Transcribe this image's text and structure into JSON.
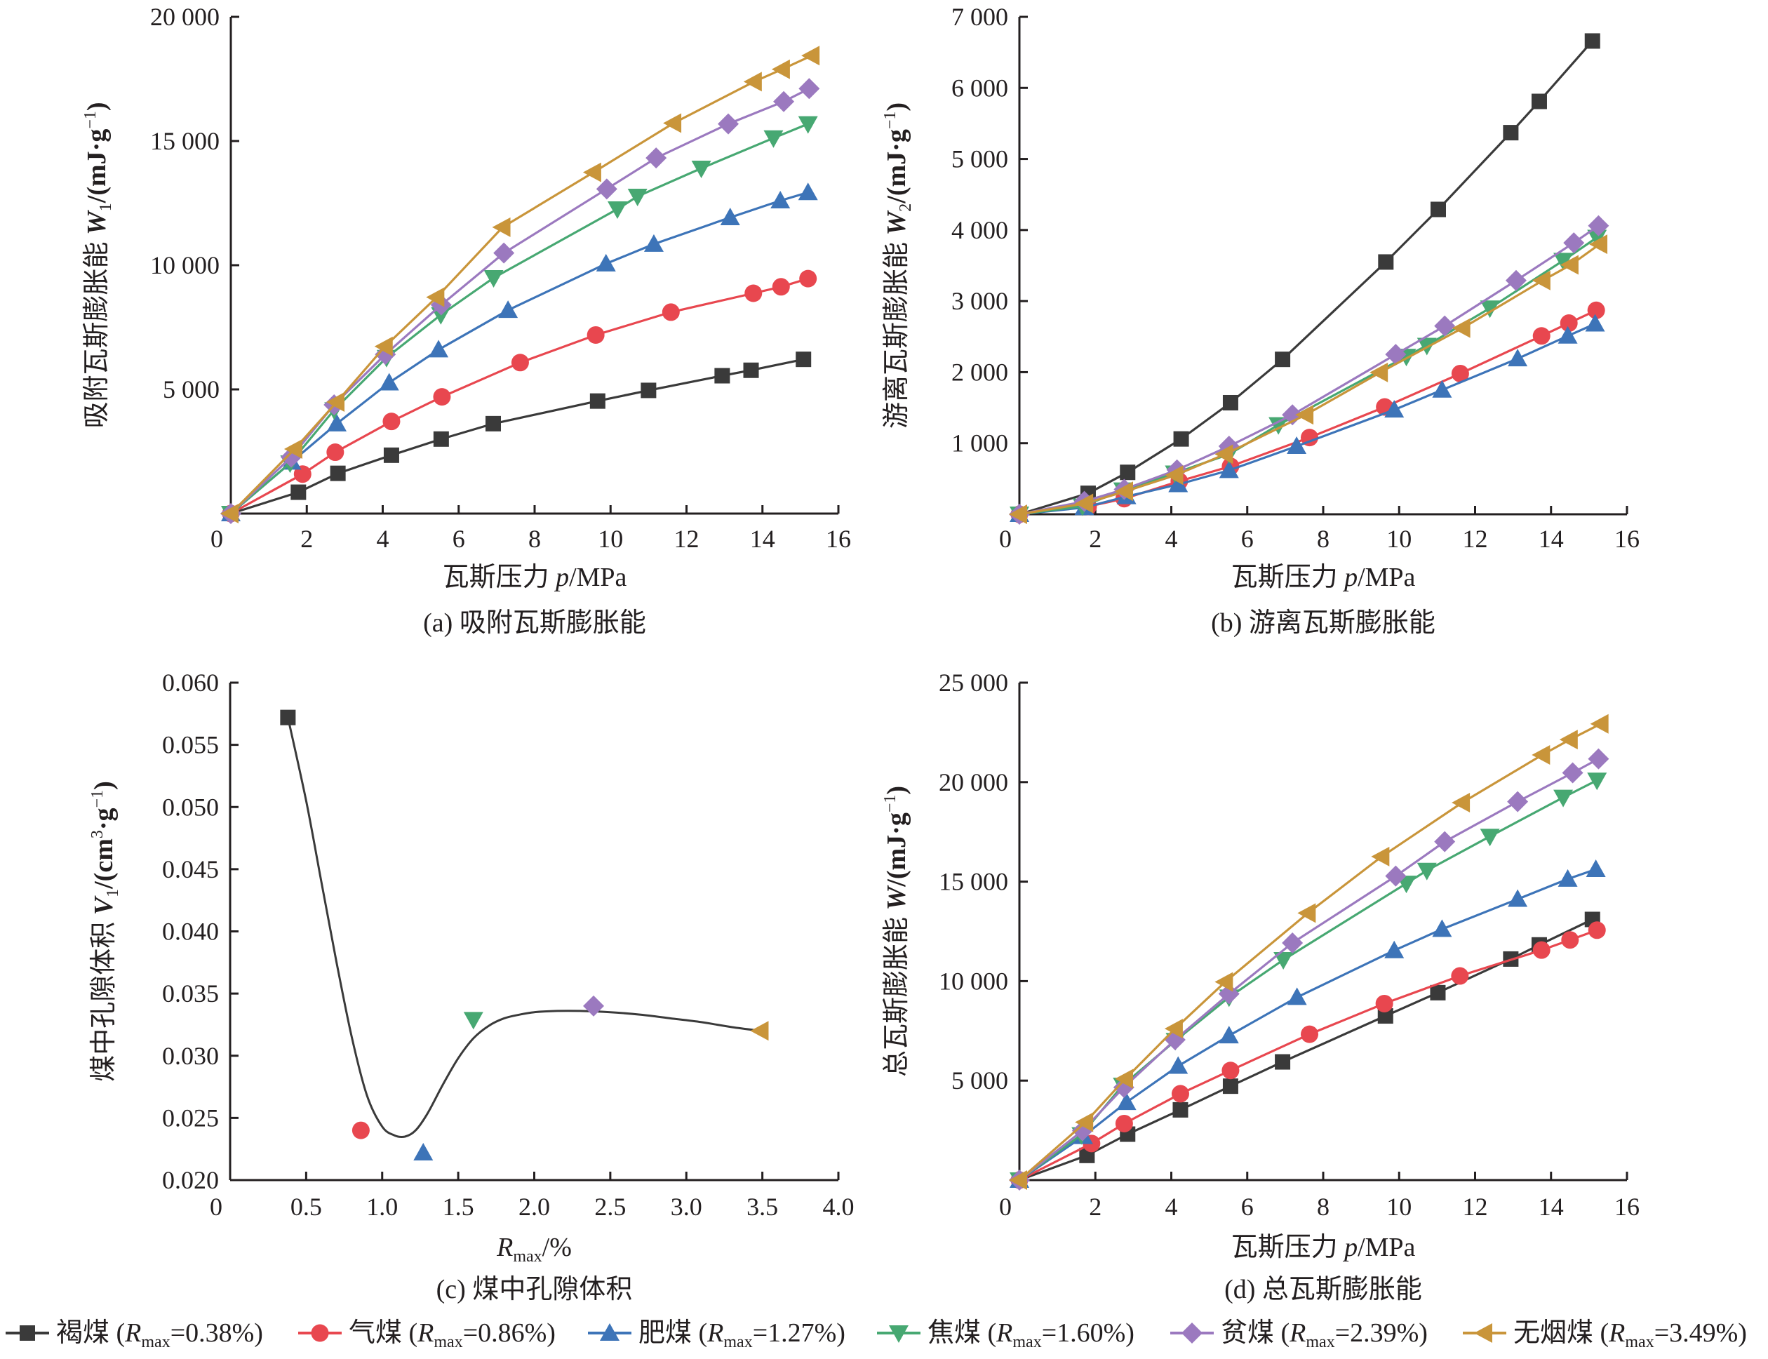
{
  "series_styles": [
    {
      "id": "lignite",
      "name": "褐煤",
      "rmax": "=0.38%)",
      "color": "#3a3a3a",
      "marker": "square"
    },
    {
      "id": "gas-coal",
      "name": "气煤",
      "rmax": "=0.86%)",
      "color": "#e8474f",
      "marker": "circle"
    },
    {
      "id": "fat-coal",
      "name": "肥煤",
      "rmax": "=1.27%)",
      "color": "#3d74b8",
      "marker": "triangle-up"
    },
    {
      "id": "coking-coal",
      "name": "焦煤",
      "rmax": "=1.60%)",
      "color": "#47a872",
      "marker": "triangle-down"
    },
    {
      "id": "lean-coal",
      "name": "贫煤",
      "rmax": "=2.39%)",
      "color": "#9b79bf",
      "marker": "diamond"
    },
    {
      "id": "anthracite",
      "name": "无烟煤",
      "rmax": "=3.49%)",
      "color": "#c9953a",
      "marker": "triangle-left"
    }
  ],
  "legend": {
    "items": [
      {
        "label": "褐煤 (",
        "sub": "max",
        "suffix": "=0.38%)"
      },
      {
        "label": "气煤 (",
        "sub": "max",
        "suffix": "=0.86%)"
      },
      {
        "label": "肥煤 (",
        "sub": "max",
        "suffix": "=1.27%)"
      },
      {
        "label": "焦煤 (",
        "sub": "max",
        "suffix": "=1.60%)"
      },
      {
        "label": "贫煤 (",
        "sub": "max",
        "suffix": "=2.39%)"
      },
      {
        "label": "无烟煤 (",
        "sub": "max",
        "suffix": "=3.49%)"
      }
    ],
    "r_symbol": "R",
    "placement": "bottom"
  },
  "chart_data": [
    {
      "id": "a",
      "type": "line",
      "title": "(a) 吸附瓦斯膨胀能",
      "xlabel": "瓦斯压力 p/MPa",
      "xlabel_parts": {
        "pre": "瓦斯压力 ",
        "var": "p",
        "post": "/MPa"
      },
      "ylabel": "吸附瓦斯膨胀能 W1/(mJ·g−1)",
      "ylabel_parts": {
        "pre": "吸附瓦斯膨胀能 ",
        "var": "W",
        "sub": "1",
        "post": "/(mJ·g",
        "sup": "−1",
        "end": ")"
      },
      "xlim": [
        0,
        16
      ],
      "ylim": [
        0,
        20000
      ],
      "xticks": [
        0,
        2,
        4,
        6,
        8,
        10,
        12,
        14,
        16
      ],
      "xtick_labels": [
        "0",
        "2",
        "4",
        "6",
        "8",
        "10",
        "12",
        "14",
        "16"
      ],
      "yticks": [
        5000,
        10000,
        15000,
        20000
      ],
      "ytick_labels": [
        "5 000",
        "10 000",
        "15 000",
        "20 000"
      ],
      "grid": false,
      "series": [
        {
          "name": "褐煤 (Rmax=0.38%)",
          "x": [
            0,
            1.78,
            2.82,
            4.23,
            5.54,
            6.91,
            9.66,
            11.0,
            12.94,
            13.7,
            15.08
          ],
          "y": [
            0,
            860,
            1620,
            2350,
            3000,
            3620,
            4530,
            4960,
            5550,
            5770,
            6210
          ]
        },
        {
          "name": "气煤 (Rmax=0.86%)",
          "x": [
            0,
            1.89,
            2.75,
            4.23,
            5.56,
            7.62,
            9.61,
            11.59,
            13.76,
            14.49,
            15.2
          ],
          "y": [
            0,
            1590,
            2470,
            3710,
            4700,
            6080,
            7190,
            8110,
            8870,
            9130,
            9460
          ]
        },
        {
          "name": "肥煤 (Rmax=1.27%)",
          "x": [
            0,
            1.6,
            2.79,
            4.17,
            5.47,
            7.3,
            9.88,
            11.14,
            13.15,
            14.47,
            15.2
          ],
          "y": [
            0,
            2080,
            3620,
            5270,
            6600,
            8190,
            10060,
            10850,
            11920,
            12600,
            12930
          ]
        },
        {
          "name": "焦煤 (Rmax=1.60%)",
          "x": [
            0,
            1.56,
            2.72,
            4.1,
            5.53,
            6.92,
            10.18,
            10.71,
            12.39,
            14.29,
            15.2
          ],
          "y": [
            0,
            2030,
            4170,
            6280,
            8000,
            9490,
            12260,
            12770,
            13900,
            15120,
            15690
          ]
        },
        {
          "name": "贫煤 (Rmax=2.39%)",
          "x": [
            0,
            1.59,
            2.72,
            4.07,
            5.54,
            7.19,
            9.9,
            11.2,
            13.1,
            14.56,
            15.23
          ],
          "y": [
            0,
            2270,
            4380,
            6410,
            8400,
            10490,
            13070,
            14320,
            15690,
            16590,
            17110
          ]
        },
        {
          "name": "无烟煤 (Rmax=3.49%)",
          "x": [
            0,
            1.68,
            2.79,
            4.06,
            5.42,
            7.16,
            9.55,
            11.66,
            13.78,
            14.52,
            15.3
          ],
          "y": [
            0,
            2600,
            4490,
            6730,
            8710,
            11530,
            13740,
            15720,
            17390,
            17890,
            18440
          ]
        }
      ]
    },
    {
      "id": "b",
      "type": "line",
      "title": "(b) 游离瓦斯膨胀能",
      "xlabel": "瓦斯压力 p/MPa",
      "xlabel_parts": {
        "pre": "瓦斯压力 ",
        "var": "p",
        "post": "/MPa"
      },
      "ylabel": "游离瓦斯膨胀能 W2/(mJ·g−1)",
      "ylabel_parts": {
        "pre": "游离瓦斯膨胀能 ",
        "var": "W",
        "sub": "2",
        "post": "/(mJ·g",
        "sup": "−1",
        "end": ")"
      },
      "xlim": [
        0,
        16
      ],
      "ylim": [
        0,
        7000
      ],
      "xticks": [
        0,
        2,
        4,
        6,
        8,
        10,
        12,
        14,
        16
      ],
      "xtick_labels": [
        "0",
        "2",
        "4",
        "6",
        "8",
        "10",
        "12",
        "14",
        "16"
      ],
      "yticks": [
        1000,
        2000,
        3000,
        4000,
        5000,
        6000,
        7000
      ],
      "ytick_labels": [
        "1 000",
        "2 000",
        "3 000",
        "4 000",
        "5 000",
        "6 000",
        "7 000"
      ],
      "grid": false,
      "series": [
        {
          "name": "褐煤 (Rmax=0.38%)",
          "x": [
            0,
            1.81,
            2.85,
            4.26,
            5.56,
            6.93,
            9.65,
            11.03,
            12.94,
            13.69,
            15.09
          ],
          "y": [
            0,
            295,
            590,
            1060,
            1570,
            2180,
            3550,
            4290,
            5370,
            5810,
            6660
          ]
        },
        {
          "name": "气煤 (Rmax=0.86%)",
          "x": [
            0,
            1.81,
            2.76,
            4.21,
            5.56,
            7.64,
            9.62,
            11.61,
            13.75,
            14.47,
            15.19
          ],
          "y": [
            0,
            110,
            220,
            465,
            675,
            1080,
            1510,
            1980,
            2510,
            2690,
            2870
          ]
        },
        {
          "name": "肥煤 (Rmax=1.27%)",
          "x": [
            0,
            1.71,
            2.82,
            4.18,
            5.52,
            7.3,
            9.87,
            11.13,
            13.12,
            14.44,
            15.16
          ],
          "y": [
            0,
            96,
            250,
            420,
            618,
            958,
            1470,
            1750,
            2190,
            2510,
            2680
          ]
        },
        {
          "name": "焦煤 (Rmax=1.60%)",
          "x": [
            0,
            1.66,
            2.73,
            4.09,
            5.52,
            6.82,
            10.19,
            10.73,
            12.39,
            14.32,
            15.21
          ],
          "y": [
            0,
            113,
            340,
            578,
            845,
            1258,
            2220,
            2375,
            2900,
            3570,
            3895
          ]
        },
        {
          "name": "贫煤 (Rmax=2.39%)",
          "x": [
            0,
            1.71,
            2.76,
            4.15,
            5.52,
            7.19,
            9.91,
            11.2,
            13.08,
            14.6,
            15.25
          ],
          "y": [
            0,
            181,
            351,
            624,
            958,
            1400,
            2250,
            2650,
            3290,
            3820,
            4060
          ]
        },
        {
          "name": "无烟煤 (Rmax=3.49%)",
          "x": [
            0,
            1.74,
            2.79,
            4.11,
            5.42,
            7.54,
            9.5,
            11.67,
            13.78,
            14.52,
            15.28
          ],
          "y": [
            0,
            153,
            323,
            550,
            845,
            1400,
            1995,
            2620,
            3290,
            3510,
            3800
          ]
        }
      ]
    },
    {
      "id": "c",
      "type": "scatter",
      "title": "(c) 煤中孔隙体积",
      "xlabel": "Rmax/%",
      "xlabel_parts": {
        "var": "R",
        "sub": "max",
        "post": "/%"
      },
      "ylabel": "煤中孔隙体积 V1/(cm3·g−1)",
      "ylabel_parts": {
        "pre": "煤中孔隙体积 ",
        "var": "V",
        "sub": "1",
        "post": "/(cm",
        "sup3": "3",
        "mid": "·g",
        "sup": "−1",
        "end": ")"
      },
      "xlim": [
        0,
        4.0
      ],
      "ylim": [
        0.02,
        0.06
      ],
      "xticks": [
        0,
        0.5,
        1.0,
        1.5,
        2.0,
        2.5,
        3.0,
        3.5,
        4.0
      ],
      "xtick_labels": [
        "0",
        "0.5",
        "1.0",
        "1.5",
        "2.0",
        "2.5",
        "3.0",
        "3.5",
        "4.0"
      ],
      "yticks": [
        0.02,
        0.025,
        0.03,
        0.035,
        0.04,
        0.045,
        0.05,
        0.055,
        0.06
      ],
      "ytick_labels": [
        "0.020",
        "0.025",
        "0.030",
        "0.035",
        "0.040",
        "0.045",
        "0.050",
        "0.055",
        "0.060"
      ],
      "grid": false,
      "points": [
        {
          "series": "褐煤",
          "x": 0.38,
          "y": 0.0572
        },
        {
          "series": "气煤",
          "x": 0.86,
          "y": 0.024
        },
        {
          "series": "肥煤",
          "x": 1.27,
          "y": 0.0222
        },
        {
          "series": "焦煤",
          "x": 1.6,
          "y": 0.0329
        },
        {
          "series": "贫煤",
          "x": 2.39,
          "y": 0.034
        },
        {
          "series": "无烟煤",
          "x": 3.49,
          "y": 0.032
        }
      ],
      "fit_curve": {
        "x": [
          0.38,
          0.5,
          0.6,
          0.7,
          0.8,
          0.9,
          1.0,
          1.08,
          1.15,
          1.22,
          1.3,
          1.4,
          1.5,
          1.6,
          1.7,
          1.8,
          1.9,
          2.0,
          2.15,
          2.3,
          2.5,
          2.7,
          2.9,
          3.1,
          3.3,
          3.49
        ],
        "y": [
          0.0572,
          0.0505,
          0.044,
          0.0375,
          0.0315,
          0.0268,
          0.0243,
          0.0236,
          0.0235,
          0.024,
          0.0254,
          0.0277,
          0.0298,
          0.0314,
          0.0324,
          0.033,
          0.0333,
          0.0335,
          0.0336,
          0.0336,
          0.0335,
          0.0333,
          0.033,
          0.0327,
          0.0323,
          0.032
        ]
      }
    },
    {
      "id": "d",
      "type": "line",
      "title": "(d) 总瓦斯膨胀能",
      "xlabel": "瓦斯压力 p/MPa",
      "xlabel_parts": {
        "pre": "瓦斯压力 ",
        "var": "p",
        "post": "/MPa"
      },
      "ylabel": "总瓦斯膨胀能 W/(mJ·g−1)",
      "ylabel_parts": {
        "pre": "总瓦斯膨胀能 ",
        "var": "W",
        "sub": "",
        "post": "/(mJ·g",
        "sup": "−1",
        "end": ")"
      },
      "xlim": [
        0,
        16
      ],
      "ylim": [
        0,
        25000
      ],
      "xticks": [
        0,
        2,
        4,
        6,
        8,
        10,
        12,
        14,
        16
      ],
      "xtick_labels": [
        "0",
        "2",
        "4",
        "6",
        "8",
        "10",
        "12",
        "14",
        "16"
      ],
      "yticks": [
        5000,
        10000,
        15000,
        20000,
        25000
      ],
      "ytick_labels": [
        "5 000",
        "10 000",
        "15 000",
        "20 000",
        "25 000"
      ],
      "grid": false,
      "series": [
        {
          "name": "褐煤 (Rmax=0.38%)",
          "x": [
            0,
            1.78,
            2.85,
            4.24,
            5.56,
            6.93,
            9.64,
            11.02,
            12.94,
            13.69,
            15.09
          ],
          "y": [
            0,
            1240,
            2310,
            3530,
            4720,
            5940,
            8250,
            9420,
            11110,
            11820,
            13100
          ]
        },
        {
          "name": "气煤 (Rmax=0.86%)",
          "x": [
            0,
            1.9,
            2.76,
            4.24,
            5.56,
            7.64,
            9.61,
            11.6,
            13.75,
            14.5,
            15.21
          ],
          "y": [
            0,
            1840,
            2840,
            4340,
            5510,
            7330,
            8870,
            10260,
            11560,
            12070,
            12560
          ]
        },
        {
          "name": "肥煤 (Rmax=1.27%)",
          "x": [
            0,
            1.68,
            2.82,
            4.18,
            5.52,
            7.31,
            9.87,
            11.13,
            13.12,
            14.44,
            15.18
          ],
          "y": [
            0,
            2200,
            3910,
            5730,
            7260,
            9190,
            11540,
            12610,
            14120,
            15130,
            15620
          ]
        },
        {
          "name": "焦煤 (Rmax=1.60%)",
          "x": [
            0,
            1.63,
            2.72,
            4.11,
            5.52,
            6.95,
            10.19,
            10.73,
            12.39,
            14.32,
            15.21
          ],
          "y": [
            0,
            2270,
            4760,
            7010,
            9190,
            11070,
            14910,
            15560,
            17270,
            19230,
            20090
          ]
        },
        {
          "name": "贫煤 (Rmax=2.39%)",
          "x": [
            0,
            1.66,
            2.75,
            4.1,
            5.52,
            7.19,
            9.91,
            11.2,
            13.12,
            14.57,
            15.25
          ],
          "y": [
            0,
            2480,
            4660,
            7050,
            9360,
            11920,
            15280,
            17010,
            19020,
            20470,
            21170
          ]
        },
        {
          "name": "无烟煤 (Rmax=3.49%)",
          "x": [
            0,
            1.74,
            2.79,
            4.1,
            5.42,
            7.6,
            9.54,
            11.66,
            13.77,
            14.5,
            15.31
          ],
          "y": [
            0,
            2910,
            5090,
            7610,
            9960,
            13420,
            16260,
            18970,
            21370,
            22140,
            22930
          ]
        }
      ]
    }
  ]
}
